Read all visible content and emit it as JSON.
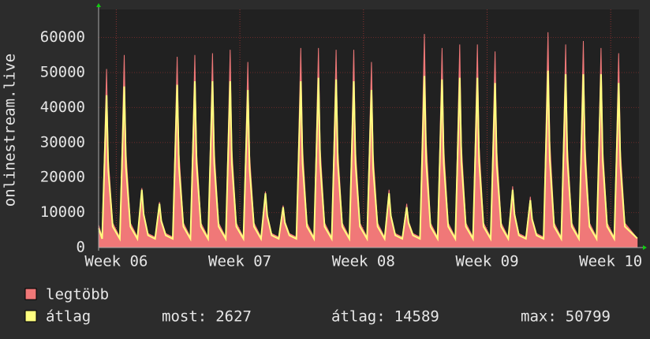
{
  "chart_data": {
    "type": "area",
    "y_label": "onlinestream.live",
    "x": [
      0,
      0.2,
      0.45,
      0.55,
      0.8,
      1.2,
      1.45,
      1.55,
      1.8,
      2.2,
      2.45,
      2.55,
      2.8,
      3.2,
      3.45,
      3.55,
      3.8,
      4.2,
      4.45,
      4.55,
      4.8,
      5.2,
      5.45,
      5.55,
      5.8,
      6.2,
      6.45,
      6.55,
      6.8,
      7.2,
      7.45,
      7.55,
      7.8,
      8.2,
      8.45,
      8.55,
      8.8,
      9.2,
      9.45,
      9.55,
      9.8,
      10.2,
      10.45,
      10.55,
      10.8,
      11.2,
      11.45,
      11.55,
      11.8,
      12.2,
      12.45,
      12.55,
      12.8,
      13.2,
      13.45,
      13.55,
      13.8,
      14.2,
      14.45,
      14.55,
      14.8,
      15.2,
      15.45,
      15.55,
      15.8,
      16.2,
      16.45,
      16.55,
      16.8,
      17.2,
      17.45,
      17.55,
      17.8,
      18.2,
      18.45,
      18.55,
      18.8,
      19.2,
      19.45,
      19.55,
      19.8,
      20.2,
      20.45,
      20.55,
      20.8,
      21.2,
      21.45,
      21.55,
      21.8,
      22.2,
      22.45,
      22.55,
      22.8,
      23.2,
      23.45,
      23.55,
      23.8,
      24.2,
      24.45,
      24.55,
      24.8,
      25.2,
      25.45,
      25.55,
      25.8,
      26.2,
      26.45,
      26.55,
      26.8,
      27.2,
      27.45,
      27.55,
      27.8,
      28.2,
      28.45,
      28.55,
      28.8,
      29.2,
      29.45,
      29.55,
      29.8,
      30.5
    ],
    "series": [
      {
        "name": "legtöbb",
        "color": "#f07878",
        "fill": true,
        "values": [
          6500,
          3000,
          51000,
          25500,
          7000,
          3000,
          55000,
          27500,
          7000,
          3000,
          17000,
          10000,
          4000,
          3000,
          13000,
          8000,
          4000,
          3000,
          54500,
          27000,
          7000,
          3000,
          55000,
          27500,
          7000,
          3000,
          55500,
          28000,
          7000,
          3000,
          56500,
          28000,
          7000,
          3000,
          53000,
          26500,
          7000,
          3000,
          16000,
          9500,
          4000,
          3000,
          12000,
          7500,
          4000,
          3000,
          57000,
          28500,
          7000,
          3000,
          57000,
          28500,
          7000,
          3000,
          56500,
          28000,
          7000,
          3000,
          56500,
          28000,
          7000,
          3000,
          53000,
          26500,
          7000,
          3000,
          16500,
          9500,
          4000,
          3000,
          12500,
          7500,
          4000,
          3000,
          61000,
          30500,
          7000,
          3000,
          57000,
          28500,
          7000,
          3000,
          58000,
          29000,
          7000,
          3000,
          58000,
          29000,
          7000,
          3000,
          56000,
          28000,
          7000,
          3000,
          17500,
          10000,
          4000,
          3000,
          14500,
          8500,
          4000,
          3000,
          61500,
          30500,
          7000,
          3000,
          58000,
          29000,
          7000,
          3000,
          59000,
          29500,
          7000,
          3000,
          57000,
          28500,
          7000,
          3000,
          55500,
          28000,
          7000,
          2700
        ]
      },
      {
        "name": "átlag",
        "color": "#ffff80",
        "fill": false,
        "values": [
          5500,
          2500,
          43500,
          22000,
          6000,
          2500,
          46000,
          23000,
          6000,
          2500,
          16500,
          9500,
          3500,
          2500,
          12500,
          7500,
          3500,
          2500,
          46500,
          23000,
          6000,
          2500,
          47500,
          24000,
          6000,
          2500,
          47500,
          24000,
          6000,
          2500,
          47500,
          24000,
          6000,
          2500,
          45000,
          22500,
          6000,
          2500,
          15500,
          9000,
          3500,
          2500,
          11500,
          7000,
          3500,
          2500,
          47500,
          24000,
          6000,
          2500,
          48500,
          24000,
          6000,
          2500,
          48000,
          24000,
          6000,
          2500,
          47500,
          24000,
          6000,
          2500,
          45000,
          22500,
          6000,
          2500,
          15500,
          9000,
          3500,
          2500,
          11500,
          7000,
          3500,
          2500,
          49000,
          24500,
          6000,
          2500,
          48000,
          24000,
          6000,
          2500,
          48500,
          24500,
          6000,
          2500,
          48500,
          24500,
          6000,
          2500,
          47000,
          23500,
          6000,
          2500,
          16500,
          9500,
          3500,
          2500,
          13500,
          8000,
          3500,
          2500,
          50500,
          25000,
          6000,
          2500,
          49500,
          25000,
          6000,
          2500,
          49500,
          25000,
          6000,
          2500,
          49500,
          25000,
          6000,
          2500,
          47000,
          23500,
          6000,
          2627
        ]
      }
    ],
    "xlim": [
      0,
      30.6
    ],
    "xticks": [
      {
        "value": 1,
        "label": "Week 06"
      },
      {
        "value": 8,
        "label": "Week 07"
      },
      {
        "value": 15,
        "label": "Week 08"
      },
      {
        "value": 22,
        "label": "Week 09"
      },
      {
        "value": 29,
        "label": "Week 10"
      }
    ],
    "ylim": [
      0,
      68000
    ],
    "yticks": [
      0,
      10000,
      20000,
      30000,
      40000,
      50000,
      60000
    ],
    "grid": true,
    "stats": [
      {
        "label": "most:",
        "value": 2627
      },
      {
        "label": "átlag:",
        "value": 14589
      },
      {
        "label": "max:",
        "value": 50799
      }
    ]
  }
}
